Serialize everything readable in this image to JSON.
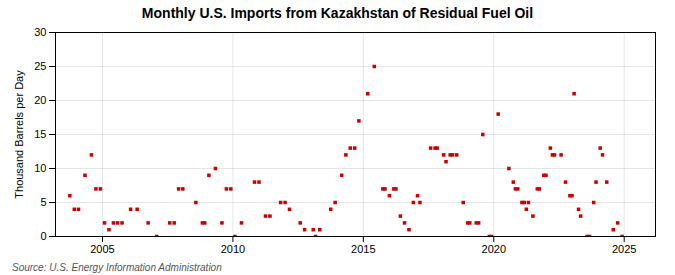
{
  "chart_data": {
    "type": "scatter",
    "title": "Monthly U.S. Imports from Kazakhstan of Residual Fuel Oil",
    "ylabel": "Thousand Barrels per Day",
    "source": "Source: U.S. Energy Information Administration",
    "color": "#cc0000",
    "marker": "square",
    "grid": true,
    "xlim": [
      2003.2,
      2026.2
    ],
    "xticks": [
      2005,
      2010,
      2015,
      2020,
      2025
    ],
    "ylim": [
      0,
      30
    ],
    "yticks": [
      0,
      5,
      10,
      15,
      20,
      25,
      30
    ],
    "x": [
      2003.75,
      2003.92,
      2004.08,
      2004.33,
      2004.58,
      2004.75,
      2004.92,
      2005.08,
      2005.25,
      2005.42,
      2005.58,
      2005.75,
      2006.08,
      2006.33,
      2006.75,
      2007.08,
      2007.58,
      2007.75,
      2007.92,
      2008.08,
      2008.58,
      2008.83,
      2008.92,
      2009.08,
      2009.33,
      2009.58,
      2009.75,
      2009.92,
      2010.08,
      2010.33,
      2010.83,
      2011.0,
      2011.25,
      2011.42,
      2011.83,
      2012.0,
      2012.17,
      2012.58,
      2012.75,
      2013.08,
      2013.17,
      2013.33,
      2013.75,
      2013.92,
      2014.17,
      2014.33,
      2014.5,
      2014.67,
      2014.83,
      2015.17,
      2015.42,
      2015.75,
      2015.83,
      2016.0,
      2016.17,
      2016.25,
      2016.42,
      2016.58,
      2016.75,
      2016.92,
      2017.08,
      2017.17,
      2017.58,
      2017.75,
      2017.83,
      2018.08,
      2018.17,
      2018.33,
      2018.42,
      2018.58,
      2018.83,
      2019.0,
      2019.08,
      2019.33,
      2019.42,
      2019.58,
      2019.83,
      2019.92,
      2020.17,
      2020.58,
      2020.75,
      2020.83,
      2020.92,
      2021.08,
      2021.17,
      2021.25,
      2021.33,
      2021.5,
      2021.67,
      2021.75,
      2021.92,
      2022.0,
      2022.17,
      2022.25,
      2022.33,
      2022.58,
      2022.75,
      2022.92,
      2023.0,
      2023.08,
      2023.25,
      2023.33,
      2023.58,
      2023.67,
      2023.83,
      2023.92,
      2024.08,
      2024.17,
      2024.33,
      2024.58,
      2024.75,
      2024.92
    ],
    "values": [
      6,
      4,
      4,
      9,
      12,
      7,
      7,
      2,
      1,
      2,
      2,
      2,
      4,
      4,
      2,
      0,
      2,
      2,
      7,
      7,
      5,
      2,
      2,
      9,
      10,
      2,
      7,
      7,
      0,
      2,
      8,
      8,
      3,
      3,
      5,
      5,
      4,
      2,
      1,
      1,
      0,
      1,
      4,
      5,
      9,
      12,
      13,
      13,
      17,
      21,
      25,
      7,
      7,
      6,
      7,
      7,
      3,
      2,
      1,
      5,
      6,
      5,
      13,
      13,
      13,
      12,
      11,
      12,
      12,
      12,
      5,
      2,
      2,
      2,
      2,
      15,
      0,
      0,
      18,
      10,
      8,
      7,
      7,
      5,
      5,
      4,
      5,
      3,
      7,
      7,
      9,
      9,
      13,
      12,
      12,
      12,
      8,
      6,
      6,
      21,
      4,
      3,
      0,
      0,
      5,
      8,
      13,
      12,
      8,
      1,
      2,
      0
    ]
  }
}
